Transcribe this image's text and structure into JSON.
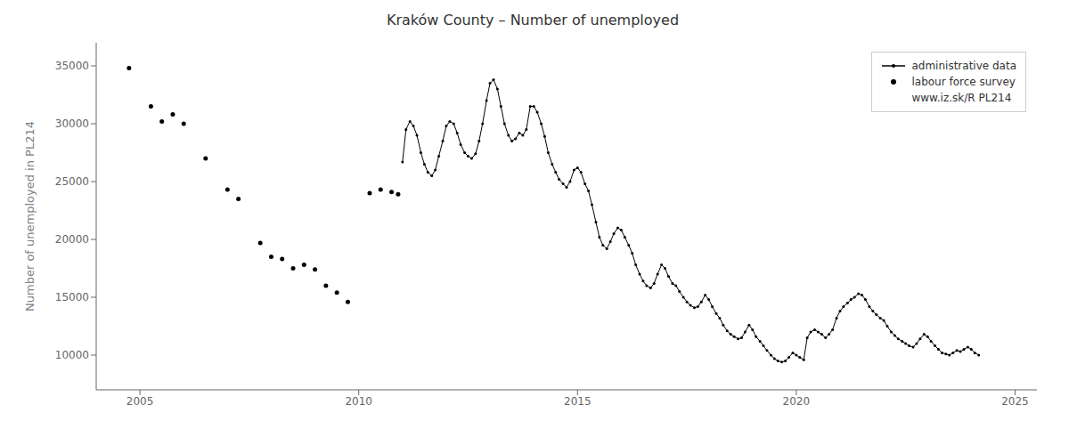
{
  "chart_data": {
    "type": "scatter",
    "title": "Kraków County – Number of unemployed",
    "ylabel": "Number of unemployed in PL214",
    "xlim": [
      2004.0,
      2025.5
    ],
    "ylim": [
      7000,
      37000
    ],
    "xticks": [
      2005,
      2010,
      2015,
      2020,
      2025
    ],
    "yticks": [
      10000,
      15000,
      20000,
      25000,
      30000,
      35000
    ],
    "grid": false,
    "legend": "upper right",
    "annotation": "www.iz.sk/R PL214",
    "series": [
      {
        "name": "administrative data",
        "type": "line",
        "color": "#000000",
        "marker": "o",
        "x": [
          2011.0,
          2011.08,
          2011.17,
          2011.25,
          2011.33,
          2011.42,
          2011.5,
          2011.58,
          2011.67,
          2011.75,
          2011.83,
          2011.92,
          2012.0,
          2012.08,
          2012.17,
          2012.25,
          2012.33,
          2012.42,
          2012.5,
          2012.58,
          2012.67,
          2012.75,
          2012.83,
          2012.92,
          2013.0,
          2013.08,
          2013.17,
          2013.25,
          2013.33,
          2013.42,
          2013.5,
          2013.58,
          2013.67,
          2013.75,
          2013.83,
          2013.92,
          2014.0,
          2014.08,
          2014.17,
          2014.25,
          2014.33,
          2014.42,
          2014.5,
          2014.58,
          2014.67,
          2014.75,
          2014.83,
          2014.92,
          2015.0,
          2015.08,
          2015.17,
          2015.25,
          2015.33,
          2015.42,
          2015.5,
          2015.58,
          2015.67,
          2015.75,
          2015.83,
          2015.92,
          2016.0,
          2016.08,
          2016.17,
          2016.25,
          2016.33,
          2016.42,
          2016.5,
          2016.58,
          2016.67,
          2016.75,
          2016.83,
          2016.92,
          2017.0,
          2017.08,
          2017.17,
          2017.25,
          2017.33,
          2017.42,
          2017.5,
          2017.58,
          2017.67,
          2017.75,
          2017.83,
          2017.92,
          2018.0,
          2018.08,
          2018.17,
          2018.25,
          2018.33,
          2018.42,
          2018.5,
          2018.58,
          2018.67,
          2018.75,
          2018.83,
          2018.92,
          2019.0,
          2019.08,
          2019.17,
          2019.25,
          2019.33,
          2019.42,
          2019.5,
          2019.58,
          2019.67,
          2019.75,
          2019.83,
          2019.92,
          2020.0,
          2020.08,
          2020.17,
          2020.25,
          2020.33,
          2020.42,
          2020.5,
          2020.58,
          2020.67,
          2020.75,
          2020.83,
          2020.92,
          2021.0,
          2021.08,
          2021.17,
          2021.25,
          2021.33,
          2021.42,
          2021.5,
          2021.58,
          2021.67,
          2021.75,
          2021.83,
          2021.92,
          2022.0,
          2022.08,
          2022.17,
          2022.25,
          2022.33,
          2022.42,
          2022.5,
          2022.58,
          2022.67,
          2022.75,
          2022.83,
          2022.92,
          2023.0,
          2023.08,
          2023.17,
          2023.25,
          2023.33,
          2023.42,
          2023.5,
          2023.58,
          2023.67,
          2023.75,
          2023.83,
          2023.92,
          2024.0,
          2024.08,
          2024.17
        ],
        "values": [
          26700,
          29500,
          30200,
          29800,
          29000,
          27500,
          26500,
          25800,
          25500,
          26000,
          27200,
          28500,
          29800,
          30200,
          30000,
          29200,
          28200,
          27500,
          27200,
          27000,
          27400,
          28500,
          30000,
          32000,
          33500,
          33800,
          33000,
          31500,
          30000,
          29000,
          28500,
          28700,
          29200,
          29000,
          29500,
          31500,
          31500,
          31000,
          30000,
          28900,
          27500,
          26500,
          25800,
          25200,
          24800,
          24500,
          25000,
          26000,
          26200,
          25800,
          24800,
          24200,
          23000,
          21500,
          20200,
          19500,
          19200,
          19800,
          20500,
          21000,
          20800,
          20200,
          19500,
          18800,
          17800,
          17000,
          16400,
          16000,
          15800,
          16200,
          17000,
          17800,
          17500,
          16800,
          16200,
          16000,
          15500,
          15000,
          14600,
          14300,
          14100,
          14200,
          14600,
          15200,
          14800,
          14200,
          13600,
          13200,
          12600,
          12100,
          11800,
          11600,
          11400,
          11500,
          12000,
          12600,
          12200,
          11600,
          11200,
          10800,
          10400,
          10000,
          9700,
          9500,
          9400,
          9500,
          9800,
          10200,
          10000,
          9800,
          9600,
          11500,
          12000,
          12200,
          12000,
          11800,
          11500,
          11800,
          12200,
          13200,
          13800,
          14200,
          14500,
          14800,
          15000,
          15300,
          15200,
          14800,
          14200,
          13800,
          13500,
          13200,
          13000,
          12500,
          12000,
          11700,
          11400,
          11200,
          11000,
          10800,
          10700,
          11000,
          11400,
          11800,
          11600,
          11200,
          10800,
          10500,
          10200,
          10100,
          10000,
          10200,
          10400,
          10300,
          10500,
          10700,
          10500,
          10200,
          10000
        ]
      },
      {
        "name": "labour force survey",
        "type": "scatter",
        "color": "#000000",
        "marker": "o",
        "x": [
          2004.75,
          2005.25,
          2005.5,
          2005.75,
          2006.0,
          2006.5,
          2007.0,
          2007.25,
          2007.75,
          2008.0,
          2008.25,
          2008.5,
          2008.75,
          2009.0,
          2009.25,
          2009.5,
          2009.75,
          2010.25,
          2010.5,
          2010.75,
          2010.9
        ],
        "values": [
          34800,
          31500,
          30200,
          30800,
          30000,
          27000,
          24300,
          23500,
          19700,
          18500,
          18300,
          17500,
          17800,
          17400,
          16000,
          15400,
          14600,
          24000,
          24300,
          24100,
          23900
        ]
      }
    ]
  }
}
